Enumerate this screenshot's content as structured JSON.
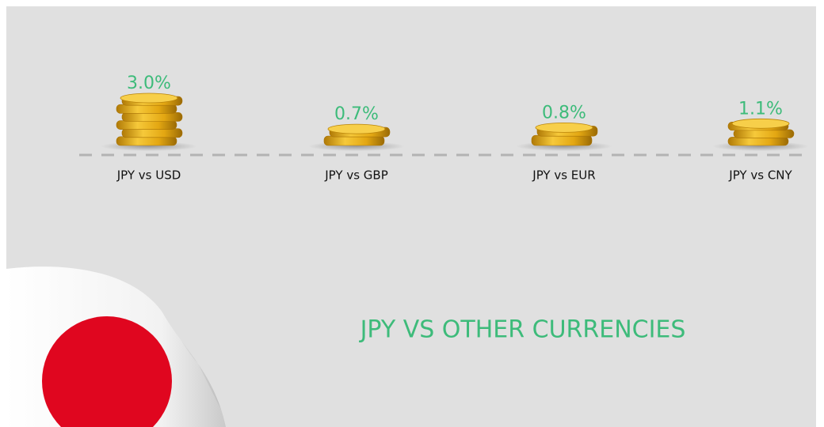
{
  "chart_data": {
    "type": "bar",
    "title": "JPY VS OTHER CURRENCIES",
    "categories": [
      "JPY vs USD",
      "JPY vs GBP",
      "JPY vs EUR",
      "JPY vs CNY"
    ],
    "values": [
      3.0,
      0.7,
      0.8,
      1.1
    ],
    "value_labels": [
      "3.0%",
      "0.7%",
      "0.8%",
      "1.1%"
    ],
    "color": "#e9b117",
    "label_color": "#3dbb7a"
  }
}
